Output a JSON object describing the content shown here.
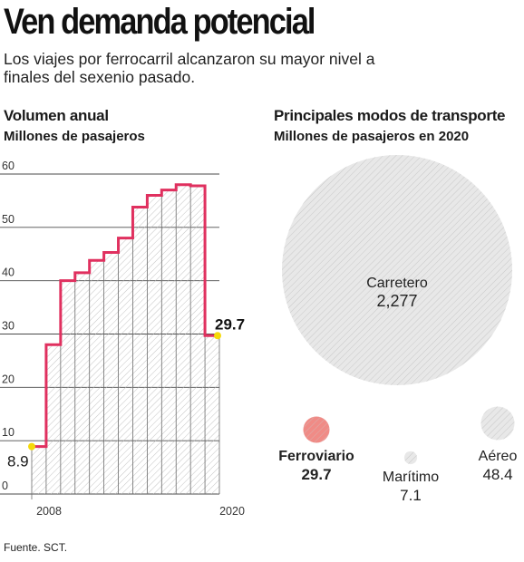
{
  "title": "Ven demanda potencial",
  "subtitle": "Los viajes por ferrocarril alcanzaron su mayor nivel a finales del sexenio pasado.",
  "left_panel": {
    "heading": "Volumen anual",
    "subheading": "Millones de pasajeros"
  },
  "right_panel": {
    "heading": "Principales modos de transporte",
    "subheading": "Millones de pasajeros en 2020"
  },
  "source": "Fuente. SCT.",
  "colors": {
    "line": "#e0305f",
    "highlight": "#f5d90a",
    "bubble_fill": "#e8e8e8",
    "rail_fill": "#f08b86"
  },
  "chart_data": [
    {
      "type": "line",
      "step": true,
      "title": "Volumen anual",
      "ylabel": "Millones de pasajeros",
      "x": [
        2008,
        2009,
        2010,
        2011,
        2012,
        2013,
        2014,
        2015,
        2016,
        2017,
        2018,
        2019,
        2020
      ],
      "values": [
        8.9,
        28.0,
        40.0,
        41.5,
        43.8,
        45.3,
        48.0,
        53.8,
        56.0,
        57.0,
        58.0,
        57.8,
        29.7
      ],
      "ylim": [
        0,
        60
      ],
      "yticks": [
        "0",
        "10",
        "20",
        "30",
        "40",
        "50",
        "60"
      ],
      "xticks": [
        "2008",
        "2020"
      ],
      "data_labels": {
        "first": "8.9",
        "last": "29.7"
      },
      "grid": true
    },
    {
      "type": "bubble",
      "title": "Principales modos de transporte",
      "subtitle": "Millones de pasajeros en 2020",
      "categories": [
        "Carretero",
        "Ferroviario",
        "Marítimo",
        "Aéreo"
      ],
      "values": [
        2277,
        29.7,
        7.1,
        48.4
      ],
      "value_labels": [
        "2,277",
        "29.7",
        "7.1",
        "48.4"
      ]
    }
  ]
}
